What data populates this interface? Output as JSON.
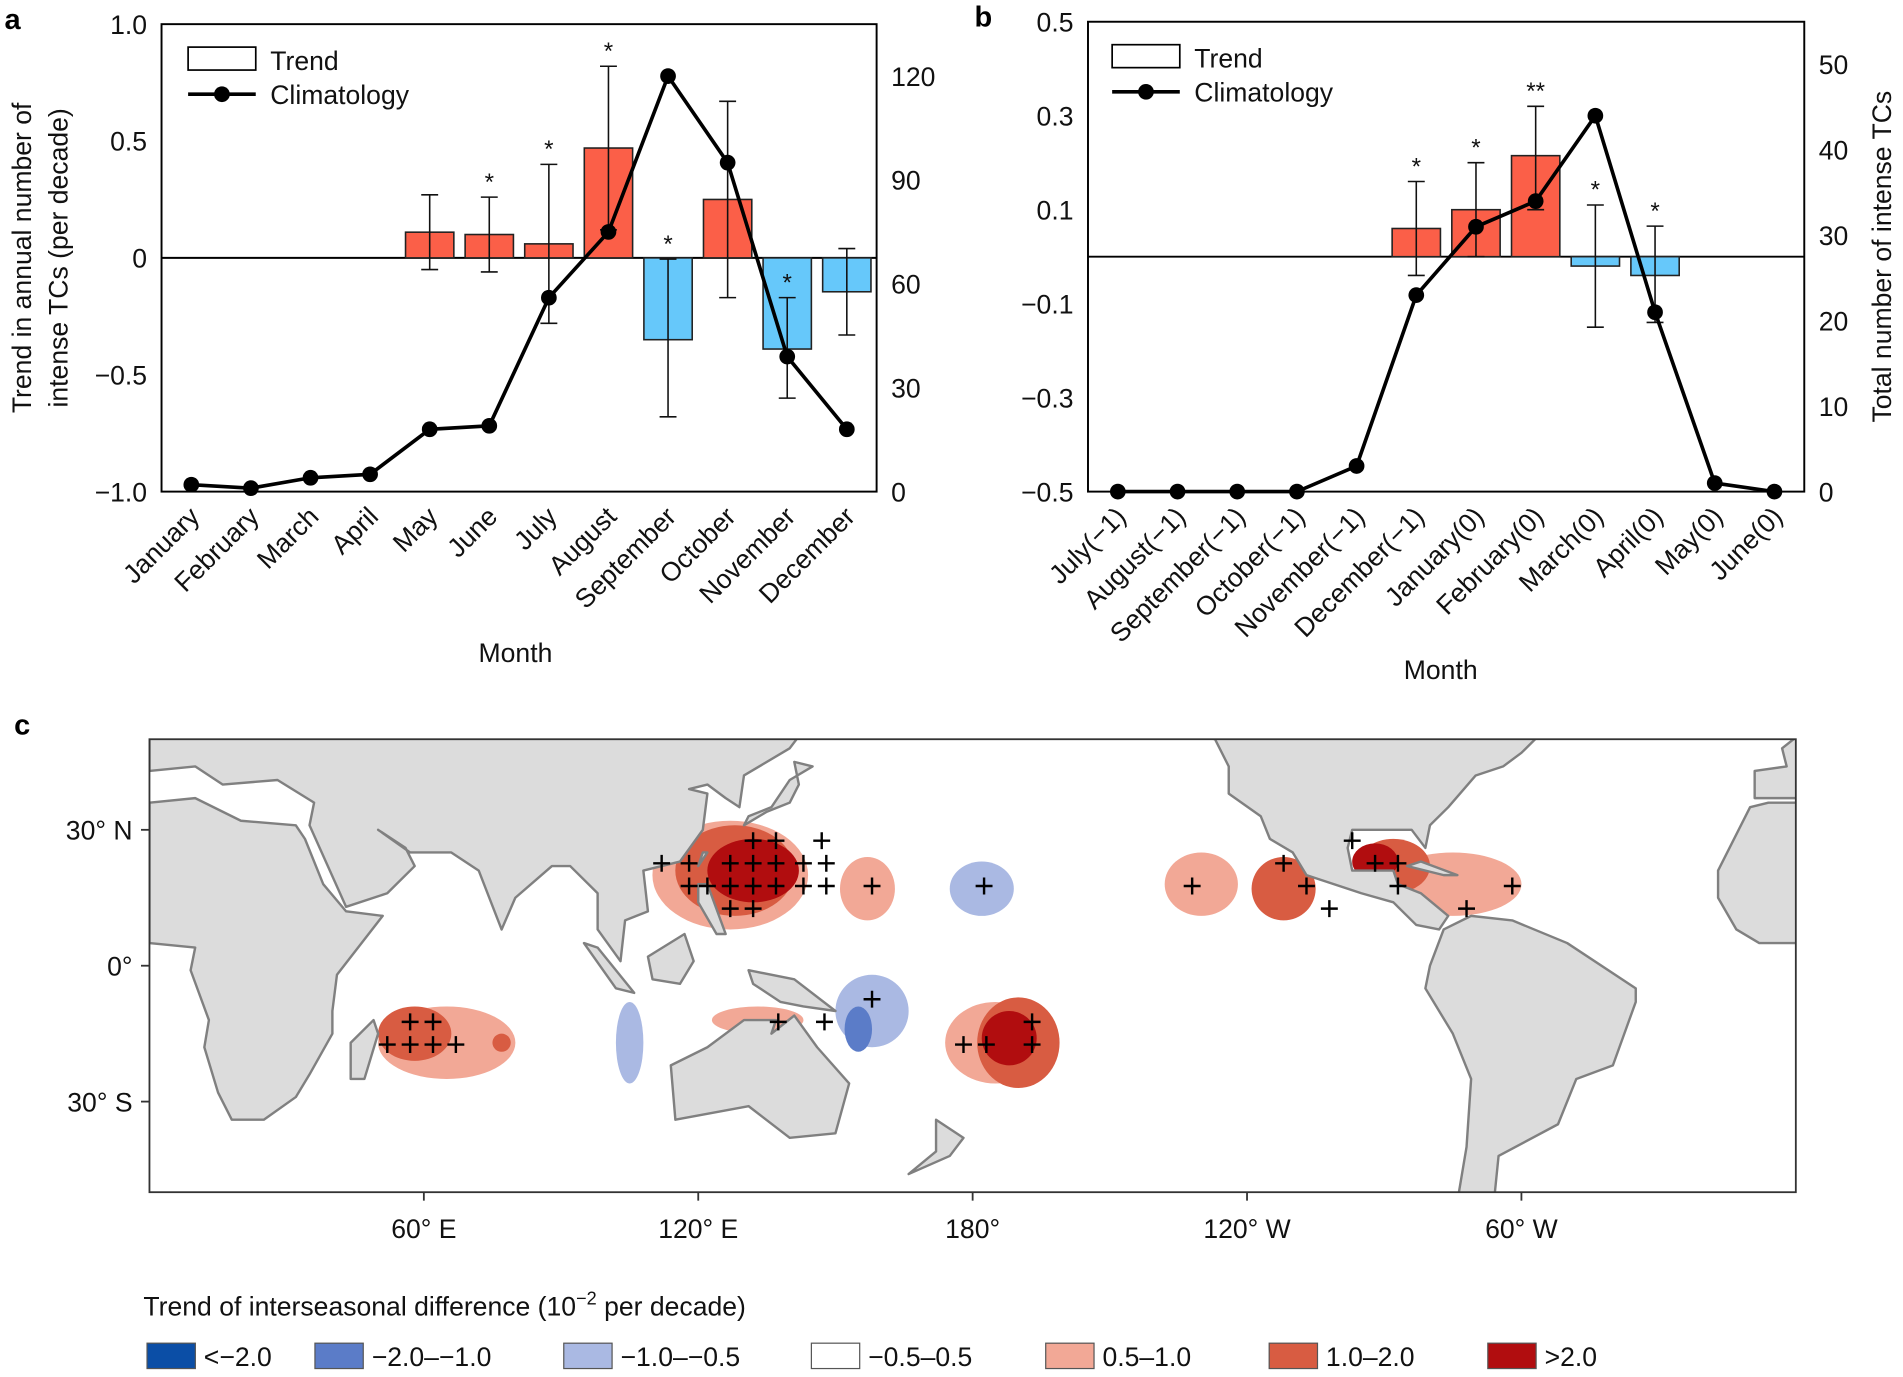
{
  "panel_labels": {
    "a": "a",
    "b": "b",
    "c": "c"
  },
  "colors": {
    "positive_bar": "#fb5f48",
    "negative_bar": "#66c8fa",
    "land": "#dcdcdc",
    "coast": "#808080"
  },
  "chart_data": [
    {
      "panel": "a",
      "type": "bar+line",
      "categories": [
        "January",
        "February",
        "March",
        "April",
        "May",
        "June",
        "July",
        "August",
        "September",
        "October",
        "November",
        "December"
      ],
      "xlabel": "Month",
      "ylabel_lines": [
        "Trend in annual number of",
        "intense TCs (per decade)"
      ],
      "y2label": "",
      "ylim": [
        -1.0,
        1.0
      ],
      "y2lim": [
        0,
        135
      ],
      "yticks": [
        1.0,
        0.5,
        0,
        -0.5,
        -1.0
      ],
      "ytick_labels": [
        "1.0",
        "0.5",
        "0",
        "−0.5",
        "−1.0"
      ],
      "y2ticks": [
        0,
        30,
        60,
        90,
        120
      ],
      "y2tick_labels": [
        "0",
        "30",
        "60",
        "90",
        "120"
      ],
      "legend": {
        "trend": "Trend",
        "climatology": "Climatology",
        "placement": "top-left"
      },
      "series": [
        {
          "name": "Trend",
          "axis": "left",
          "values": [
            null,
            null,
            null,
            null,
            0.11,
            0.1,
            0.06,
            0.47,
            -0.35,
            0.25,
            -0.39,
            -0.145
          ],
          "err_high": [
            null,
            null,
            null,
            null,
            0.27,
            0.26,
            0.4,
            0.82,
            -0.005,
            0.67,
            -0.17,
            0.04
          ],
          "err_low": [
            null,
            null,
            null,
            null,
            -0.05,
            -0.06,
            -0.28,
            0.12,
            -0.68,
            -0.17,
            -0.6,
            -0.33
          ],
          "significance": [
            "",
            "",
            "",
            "",
            "",
            "*",
            "*",
            "*",
            "*",
            "",
            "*",
            ""
          ]
        },
        {
          "name": "Climatology",
          "axis": "right",
          "values": [
            2,
            1,
            4,
            5,
            18,
            19,
            56,
            75,
            120,
            95,
            39,
            18
          ]
        }
      ]
    },
    {
      "panel": "b",
      "type": "bar+line",
      "categories": [
        "July(−1)",
        "August(−1)",
        "September(−1)",
        "October(−1)",
        "November(−1)",
        "December(−1)",
        "January(0)",
        "February(0)",
        "March(0)",
        "April(0)",
        "May(0)",
        "June(0)"
      ],
      "xlabel": "Month",
      "ylabel_lines": [],
      "y2label": "Total number of intense TCs",
      "ylim": [
        -0.5,
        0.5
      ],
      "y2lim": [
        0,
        55
      ],
      "yticks": [
        0.5,
        0.3,
        0.1,
        -0.1,
        -0.3,
        -0.5
      ],
      "ytick_labels": [
        "0.5",
        "0.3",
        "0.1",
        "−0.1",
        "−0.3",
        "−0.5"
      ],
      "y2ticks": [
        0,
        10,
        20,
        30,
        40,
        50
      ],
      "y2tick_labels": [
        "0",
        "10",
        "20",
        "30",
        "40",
        "50"
      ],
      "legend": {
        "trend": "Trend",
        "climatology": "Climatology",
        "placement": "top-left"
      },
      "series": [
        {
          "name": "Trend",
          "axis": "left",
          "values": [
            null,
            null,
            null,
            null,
            null,
            0.06,
            0.1,
            0.215,
            -0.02,
            -0.04,
            null,
            null
          ],
          "err_high": [
            null,
            null,
            null,
            null,
            null,
            0.16,
            0.2,
            0.32,
            0.11,
            0.065,
            null,
            null
          ],
          "err_low": [
            null,
            null,
            null,
            null,
            null,
            -0.04,
            0.0,
            0.1,
            -0.15,
            -0.14,
            null,
            null
          ],
          "significance": [
            "",
            "",
            "",
            "",
            "",
            "*",
            "*",
            "**",
            "*",
            "*",
            "",
            ""
          ]
        },
        {
          "name": "Climatology",
          "axis": "right",
          "values": [
            0,
            0,
            0,
            0,
            3,
            23,
            31,
            34,
            44,
            21,
            1,
            0
          ]
        }
      ]
    },
    {
      "panel": "c",
      "type": "map",
      "lon_range": [
        0,
        360
      ],
      "lat_range": [
        -50,
        50
      ],
      "lon_ticks": [
        60,
        120,
        180,
        240,
        300
      ],
      "lon_tick_labels": [
        "60° E",
        "120° E",
        "180°",
        "120° W",
        "60° W"
      ],
      "lat_ticks": [
        30,
        0,
        -30
      ],
      "lat_tick_labels": [
        "30° N",
        "0°",
        "30° S"
      ],
      "legend": {
        "title_pre": "Trend of interseasonal difference (10",
        "title_sup": "−2",
        "title_post": " per decade)",
        "categories": [
          {
            "label": "<−2.0",
            "color": "#0b4ea6"
          },
          {
            "label": "−2.0–−1.0",
            "color": "#5b7cc8"
          },
          {
            "label": "−1.0–−0.5",
            "color": "#aab9e3"
          },
          {
            "label": "−0.5–0.5",
            "color": "#ffffff"
          },
          {
            "label": "0.5–1.0",
            "color": "#f2a896"
          },
          {
            "label": "1.0–2.0",
            "color": "#d85c42"
          },
          {
            "label": ">2.0",
            "color": "#b10d0f"
          }
        ]
      },
      "regions": [
        {
          "lon": 127,
          "lat": 20,
          "rlon": 17,
          "rlat": 12,
          "category": 4
        },
        {
          "lon": 128,
          "lat": 21,
          "rlon": 13,
          "rlat": 10,
          "category": 5
        },
        {
          "lon": 132,
          "lat": 21,
          "rlon": 10,
          "rlat": 7,
          "category": 6
        },
        {
          "lon": 157,
          "lat": 17,
          "rlon": 6,
          "rlat": 7,
          "category": 4
        },
        {
          "lon": 182,
          "lat": 17,
          "rlon": 7,
          "rlat": 6,
          "category": 2
        },
        {
          "lon": 230,
          "lat": 18,
          "rlon": 8,
          "rlat": 7,
          "category": 4
        },
        {
          "lon": 248,
          "lat": 17,
          "rlon": 7,
          "rlat": 7,
          "category": 5
        },
        {
          "lon": 285,
          "lat": 18,
          "rlon": 15,
          "rlat": 7,
          "category": 4
        },
        {
          "lon": 272,
          "lat": 22,
          "rlon": 8,
          "rlat": 6,
          "category": 5
        },
        {
          "lon": 268,
          "lat": 23,
          "rlon": 5,
          "rlat": 4,
          "category": 6
        },
        {
          "lon": 65,
          "lat": -17,
          "rlon": 15,
          "rlat": 8,
          "category": 4
        },
        {
          "lon": 58,
          "lat": -15,
          "rlon": 8,
          "rlat": 6,
          "category": 5
        },
        {
          "lon": 77,
          "lat": -17,
          "rlon": 2,
          "rlat": 2,
          "category": 5
        },
        {
          "lon": 105,
          "lat": -17,
          "rlon": 3,
          "rlat": 9,
          "category": 2
        },
        {
          "lon": 133,
          "lat": -12,
          "rlon": 10,
          "rlat": 3,
          "category": 4
        },
        {
          "lon": 158,
          "lat": -10,
          "rlon": 8,
          "rlat": 8,
          "category": 2
        },
        {
          "lon": 155,
          "lat": -14,
          "rlon": 3,
          "rlat": 5,
          "category": 1
        },
        {
          "lon": 185,
          "lat": -17,
          "rlon": 11,
          "rlat": 9,
          "category": 4
        },
        {
          "lon": 190,
          "lat": -17,
          "rlon": 9,
          "rlat": 10,
          "category": 5
        },
        {
          "lon": 188,
          "lat": -16,
          "rlon": 6,
          "rlat": 6,
          "category": 6
        },
        {
          "lon": 290,
          "lat": 47,
          "rlon": 8,
          "rlat": 1.2,
          "category": 2
        }
      ],
      "significant_points": [
        [
          132,
          27.6
        ],
        [
          137,
          27.6
        ],
        [
          147,
          27.6
        ],
        [
          112,
          22.6
        ],
        [
          118,
          22.6
        ],
        [
          127,
          22.6
        ],
        [
          132,
          22.6
        ],
        [
          137,
          22.6
        ],
        [
          143,
          22.6
        ],
        [
          148,
          22.6
        ],
        [
          118,
          17.6
        ],
        [
          122,
          17.6
        ],
        [
          127,
          17.6
        ],
        [
          132,
          17.6
        ],
        [
          137,
          17.6
        ],
        [
          143,
          17.6
        ],
        [
          148,
          17.6
        ],
        [
          158,
          17.6
        ],
        [
          127,
          12.6
        ],
        [
          132,
          12.6
        ],
        [
          182.5,
          17.6
        ],
        [
          228,
          17.6
        ],
        [
          248,
          22.6
        ],
        [
          253,
          17.6
        ],
        [
          258,
          12.6
        ],
        [
          263,
          27.6
        ],
        [
          268,
          22.6
        ],
        [
          273,
          22.6
        ],
        [
          273,
          17.6
        ],
        [
          288,
          12.6
        ],
        [
          298,
          17.6
        ],
        [
          57,
          -12.4
        ],
        [
          62,
          -12.4
        ],
        [
          52,
          -17.4
        ],
        [
          57,
          -17.4
        ],
        [
          62,
          -17.4
        ],
        [
          67,
          -17.4
        ],
        [
          158,
          -7.4
        ],
        [
          137.5,
          -12.4
        ],
        [
          147.6,
          -12.4
        ],
        [
          178,
          -17.4
        ],
        [
          183,
          -17.4
        ],
        [
          193,
          -12.4
        ],
        [
          193,
          -17.4
        ]
      ]
    }
  ]
}
